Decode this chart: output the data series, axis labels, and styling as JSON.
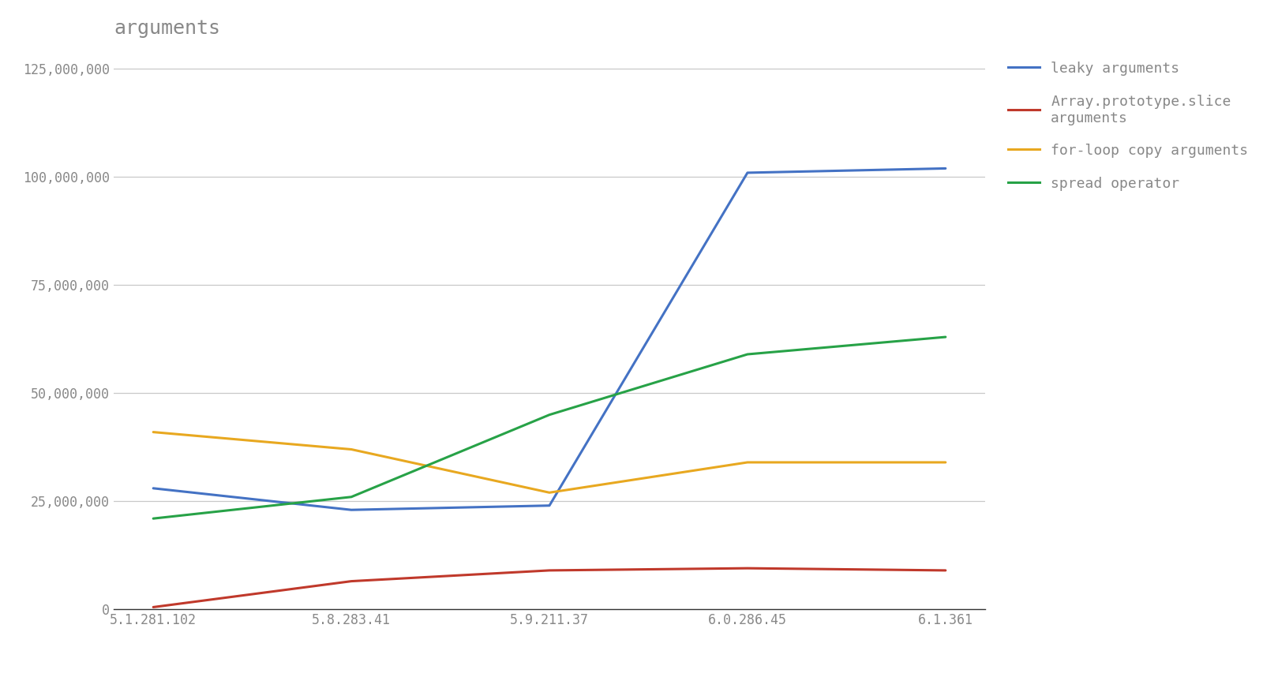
{
  "title": "arguments",
  "x_labels": [
    "5.1.281.102",
    "5.8.283.41",
    "5.9.211.37",
    "6.0.286.45",
    "6.1.361"
  ],
  "series": [
    {
      "name": "leaky arguments",
      "color": "#4472c4",
      "values": [
        28000000,
        23000000,
        24000000,
        101000000,
        102000000
      ]
    },
    {
      "name": "Array.prototype.slice\narguments",
      "color": "#c0392b",
      "values": [
        500000,
        6500000,
        9000000,
        9500000,
        9000000
      ]
    },
    {
      "name": "for-loop copy arguments",
      "color": "#e8a820",
      "values": [
        41000000,
        37000000,
        27000000,
        34000000,
        34000000
      ]
    },
    {
      "name": "spread operator",
      "color": "#27a247",
      "values": [
        21000000,
        26000000,
        45000000,
        59000000,
        63000000
      ]
    }
  ],
  "ylim": [
    0,
    130000000
  ],
  "yticks": [
    0,
    25000000,
    50000000,
    75000000,
    100000000,
    125000000
  ],
  "background_color": "#ffffff",
  "grid_color": "#c8c8c8",
  "title_fontsize": 18,
  "tick_fontsize": 12,
  "legend_fontsize": 13,
  "line_width": 2.2,
  "font_family": "monospace",
  "text_color": "#888888",
  "title_color": "#888888"
}
